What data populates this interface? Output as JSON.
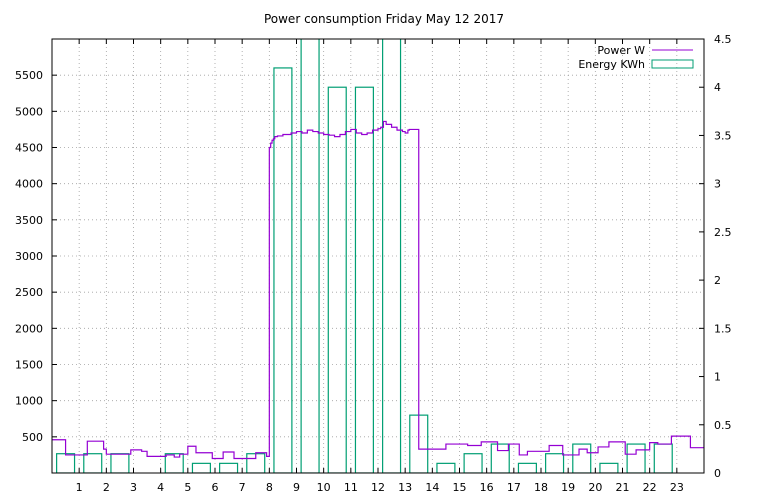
{
  "chart_data": {
    "type": "bar",
    "title": "Power consumption Friday May 12 2017",
    "xlabel": "",
    "ylabel": "",
    "xlim": [
      0,
      24
    ],
    "ylim_left": [
      0,
      6000
    ],
    "ylim_right": [
      0,
      4.5
    ],
    "x_ticks": [
      "1",
      "2",
      "3",
      "4",
      "5",
      "6",
      "7",
      "8",
      "9",
      "10",
      "11",
      "12",
      "13",
      "14",
      "15",
      "16",
      "17",
      "18",
      "19",
      "20",
      "21",
      "22",
      "23"
    ],
    "y_ticks_left": [
      "500",
      "1000",
      "1500",
      "2000",
      "2500",
      "3000",
      "3500",
      "4000",
      "4500",
      "5000",
      "5500"
    ],
    "y_ticks_right": [
      "0",
      "0.5",
      "1",
      "1.5",
      "2",
      "2.5",
      "3",
      "3.5",
      "4",
      "4.5"
    ],
    "grid": true,
    "legend_position": "top-right",
    "colors": {
      "power": "#9400d3",
      "energy": "#009e73"
    },
    "series": [
      {
        "name": "Power W",
        "type": "step",
        "axis": "left",
        "x": [
          0,
          0.5,
          0.8,
          1.3,
          1.9,
          2.0,
          2.9,
          3.3,
          3.5,
          4.2,
          4.5,
          4.7,
          5.0,
          5.3,
          5.5,
          5.9,
          6.3,
          6.7,
          7.5,
          7.9,
          8.0,
          8.05,
          8.1,
          8.15,
          8.2,
          8.3,
          8.5,
          8.8,
          9.0,
          9.2,
          9.4,
          9.6,
          9.8,
          10.0,
          10.2,
          10.4,
          10.6,
          10.8,
          11.0,
          11.2,
          11.4,
          11.6,
          11.8,
          12.0,
          12.1,
          12.2,
          12.3,
          12.5,
          12.7,
          12.9,
          13.0,
          13.1,
          13.15,
          13.2,
          13.5,
          14.5,
          15.0,
          15.3,
          15.8,
          16.4,
          16.8,
          17.2,
          17.5,
          17.8,
          18.3,
          18.8,
          19.4,
          19.7,
          20.1,
          20.5,
          21.1,
          21.5,
          22.0,
          22.3,
          22.8,
          23.5,
          24.0
        ],
        "values": [
          460,
          250,
          250,
          440,
          330,
          260,
          320,
          300,
          230,
          250,
          220,
          260,
          370,
          280,
          280,
          200,
          290,
          200,
          280,
          230,
          4500,
          4560,
          4600,
          4620,
          4650,
          4660,
          4680,
          4700,
          4720,
          4700,
          4740,
          4720,
          4700,
          4680,
          4670,
          4650,
          4680,
          4720,
          4750,
          4700,
          4680,
          4700,
          4740,
          4760,
          4780,
          4860,
          4820,
          4780,
          4740,
          4720,
          4700,
          4740,
          4750,
          4750,
          330,
          400,
          400,
          380,
          430,
          310,
          400,
          250,
          300,
          300,
          380,
          250,
          330,
          280,
          360,
          430,
          260,
          320,
          420,
          400,
          510,
          350,
          460
        ]
      },
      {
        "name": "Energy KWh",
        "type": "bar",
        "axis": "right",
        "x": [
          0,
          1,
          2,
          3,
          4,
          5,
          6,
          7,
          8,
          9,
          10,
          11,
          12,
          13,
          14,
          15,
          16,
          17,
          18,
          19,
          20,
          21,
          22,
          23
        ],
        "values": [
          0.2,
          0.2,
          0.2,
          0.0,
          0.2,
          0.1,
          0.1,
          0.2,
          4.2,
          4.6,
          4.0,
          4.0,
          4.6,
          0.6,
          0.1,
          0.2,
          0.3,
          0.1,
          0.2,
          0.3,
          0.1,
          0.3,
          0.3,
          0.0
        ]
      }
    ]
  }
}
